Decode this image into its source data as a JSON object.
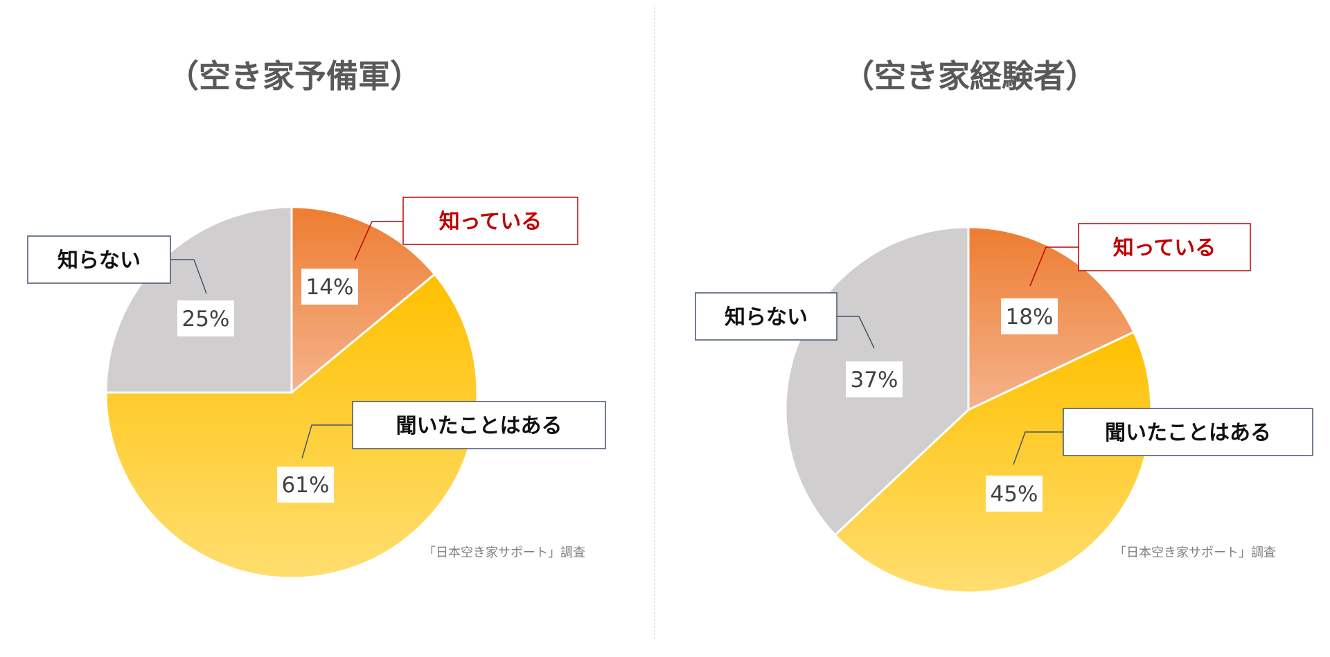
{
  "chart_data": [
    {
      "type": "pie",
      "title": "（空き家予備軍）",
      "source_note": "「日本空き家サポート」調査",
      "slices": [
        {
          "label": "知っている",
          "value": 14,
          "value_label": "14%",
          "color": "#ED7D31",
          "label_color": "#C00000"
        },
        {
          "label": "聞いたことはある",
          "value": 61,
          "value_label": "61%",
          "color": "#FFC000",
          "label_color": "#111111"
        },
        {
          "label": "知らない",
          "value": 25,
          "value_label": "25%",
          "color": "#D0CECE",
          "label_color": "#111111"
        }
      ]
    },
    {
      "type": "pie",
      "title": "（空き家経験者）",
      "source_note": "「日本空き家サポート」調査",
      "slices": [
        {
          "label": "知っている",
          "value": 18,
          "value_label": "18%",
          "color": "#ED7D31",
          "label_color": "#C00000"
        },
        {
          "label": "聞いたことはある",
          "value": 45,
          "value_label": "45%",
          "color": "#FFC000",
          "label_color": "#111111"
        },
        {
          "label": "知らない",
          "value": 37,
          "value_label": "37%",
          "color": "#D0CECE",
          "label_color": "#111111"
        }
      ]
    }
  ]
}
